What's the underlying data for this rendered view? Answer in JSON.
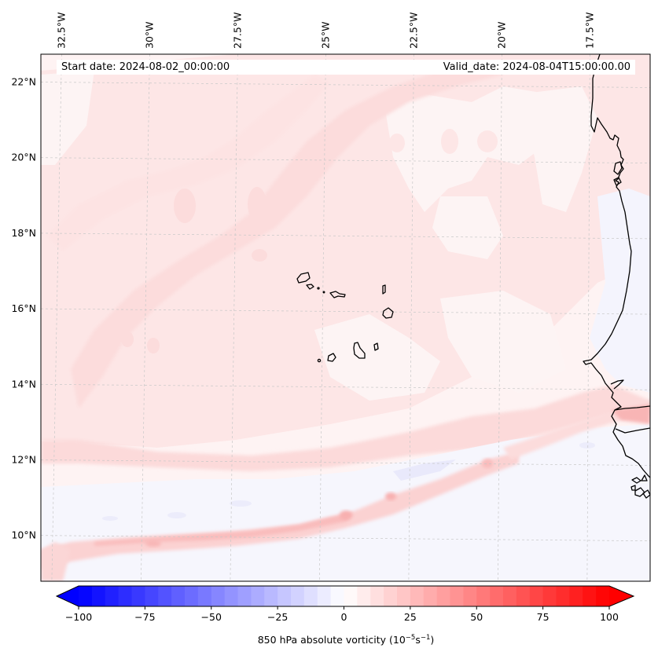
{
  "map": {
    "projection_note": "Cartopy map of Cabo Verde region and West African coast",
    "lon_labels": [
      "32.5°W",
      "30°W",
      "27.5°W",
      "25°W",
      "22.5°W",
      "20°W",
      "17.5°W"
    ],
    "lon_values": [
      -32.5,
      -30,
      -27.5,
      -25,
      -22.5,
      -20,
      -17.5
    ],
    "lat_labels": [
      "22°N",
      "20°N",
      "18°N",
      "16°N",
      "14°N",
      "12°N",
      "10°N"
    ],
    "lat_values": [
      22,
      20,
      18,
      16,
      14,
      12,
      10
    ],
    "extent": {
      "lon_min": -33.0,
      "lon_max": -15.2,
      "lat_min": 8.9,
      "lat_max": 22.8
    },
    "annotations": {
      "start_date": "Start date: 2024-08-02_00:00:00",
      "valid_date": "Valid_date: 2024-08-04T15:00:00.00"
    }
  },
  "colorbar": {
    "min": -100,
    "max": 100,
    "step": 5,
    "extend": "both",
    "ticks": [
      -100,
      -75,
      -50,
      -25,
      0,
      25,
      50,
      75,
      100
    ],
    "tick_labels": [
      "−100",
      "−75",
      "−50",
      "−25",
      "0",
      "25",
      "50",
      "75",
      "100"
    ],
    "label_main": "850 hPa absolute vorticity (10",
    "label_exp1": "−5",
    "label_mid": "s",
    "label_exp2": "−1",
    "label_end": ")",
    "cmap": "bwr",
    "low_color": "#0000ff",
    "mid_color": "#ffffff",
    "high_color": "#ff0000"
  },
  "chart_data": {
    "type": "heatmap",
    "title": "",
    "variable": "850 hPa absolute vorticity",
    "units": "10^-5 s^-1",
    "xlabel": "",
    "ylabel": "",
    "x_ticks": [
      "32.5°W",
      "30°W",
      "27.5°W",
      "25°W",
      "22.5°W",
      "20°W",
      "17.5°W"
    ],
    "y_ticks": [
      "22°N",
      "20°N",
      "18°N",
      "16°N",
      "14°N",
      "12°N",
      "10°N"
    ],
    "value_range": [
      -100,
      100
    ],
    "grid": true,
    "features": [
      {
        "name": "SW-NE positive vorticity band (northwest)",
        "lon": [
          -31.5,
          -23.5
        ],
        "lat": [
          15.0,
          22.5
        ],
        "approx_value": 10
      },
      {
        "name": "ITCZ positive vorticity band",
        "lon": [
          -33,
          -20
        ],
        "lat": [
          9.5,
          12.0
        ],
        "approx_value": 20
      },
      {
        "name": "Broad weak positive vorticity over domain",
        "approx_value": 5
      },
      {
        "name": "Weak negative vorticity band",
        "lon": [
          -33,
          -18
        ],
        "lat": [
          10.5,
          11.5
        ],
        "approx_value": -5
      },
      {
        "name": "Negative vorticity strip off Mauritanian coast",
        "lon": [
          -16.2,
          -16.0
        ],
        "lat": [
          14.8,
          16.5
        ],
        "approx_value": -10
      }
    ]
  }
}
